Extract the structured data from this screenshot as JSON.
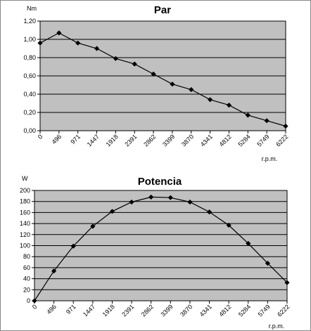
{
  "chart_data": [
    {
      "type": "line",
      "title": "Par",
      "ylabel": "Nm",
      "xlabel": "r.p.m.",
      "categories": [
        "0",
        "496",
        "971",
        "1447",
        "1918",
        "2391",
        "2862",
        "3399",
        "3870",
        "4341",
        "4812",
        "5284",
        "5749",
        "6222"
      ],
      "values": [
        0.96,
        1.07,
        0.96,
        0.9,
        0.79,
        0.73,
        0.62,
        0.51,
        0.45,
        0.34,
        0.28,
        0.17,
        0.11,
        0.05
      ],
      "ylim": [
        0,
        1.2
      ],
      "yticks": [
        "0,00",
        "0,20",
        "0,40",
        "0,60",
        "0,80",
        "1,00",
        "1,20"
      ],
      "grid": true,
      "colors": {
        "plot_bg": "#c0c0c0",
        "line": "#000000"
      }
    },
    {
      "type": "line",
      "title": "Potencia",
      "ylabel": "W",
      "xlabel": "r.p.m.",
      "categories": [
        "0",
        "496",
        "971",
        "1447",
        "1918",
        "2391",
        "2862",
        "3399",
        "3870",
        "4341",
        "4812",
        "5284",
        "5749",
        "6222"
      ],
      "values": [
        0,
        54,
        99,
        135,
        162,
        179,
        188,
        187,
        179,
        161,
        137,
        104,
        68,
        33
      ],
      "ylim": [
        0,
        200
      ],
      "yticks": [
        "0",
        "20",
        "40",
        "60",
        "80",
        "100",
        "120",
        "140",
        "160",
        "180",
        "200"
      ],
      "grid": true,
      "colors": {
        "plot_bg": "#c0c0c0",
        "line": "#000000"
      }
    }
  ]
}
